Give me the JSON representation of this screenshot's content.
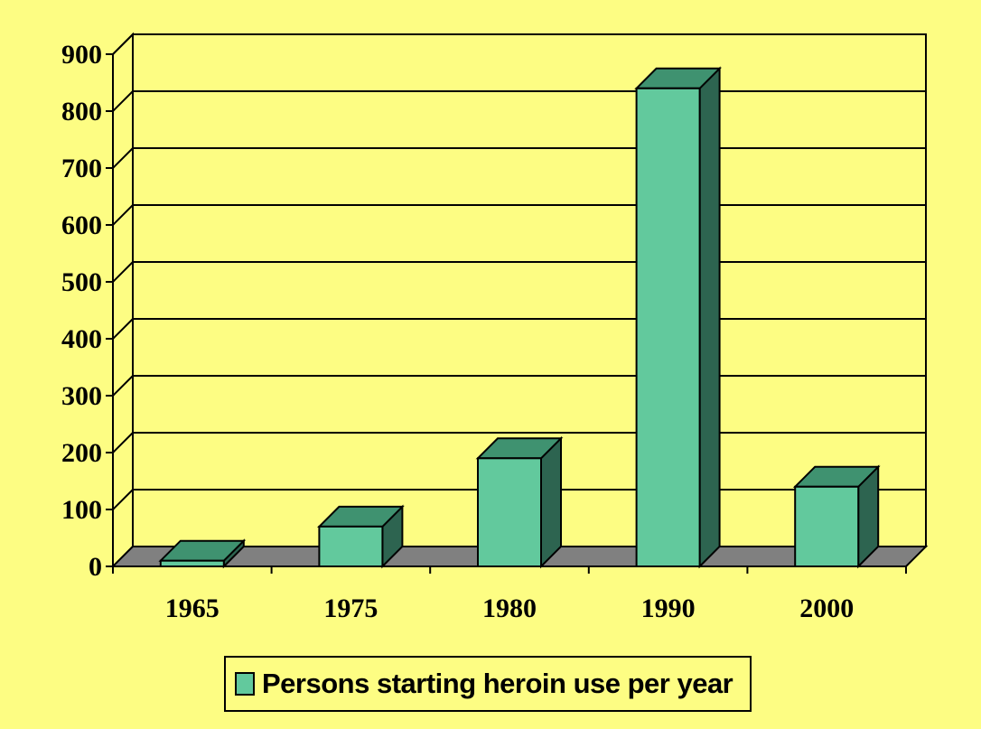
{
  "chart_data": {
    "type": "bar",
    "categories": [
      "1965",
      "1975",
      "1980",
      "1990",
      "2000"
    ],
    "series": [
      {
        "name": "Persons starting heroin use per year",
        "values": [
          10,
          70,
          190,
          840,
          140
        ]
      }
    ],
    "yticks": [
      "0",
      "100",
      "200",
      "300",
      "400",
      "500",
      "600",
      "700",
      "800",
      "900"
    ],
    "ylim": [
      0,
      900
    ],
    "grid": true,
    "legend": "bottom",
    "style": "3d"
  },
  "colors": {
    "background": "#fdfd83",
    "bar_front": "#62c99d",
    "bar_top": "#3f9270",
    "bar_side": "#2d6450",
    "floor": "#808080",
    "grid": "#000000"
  }
}
